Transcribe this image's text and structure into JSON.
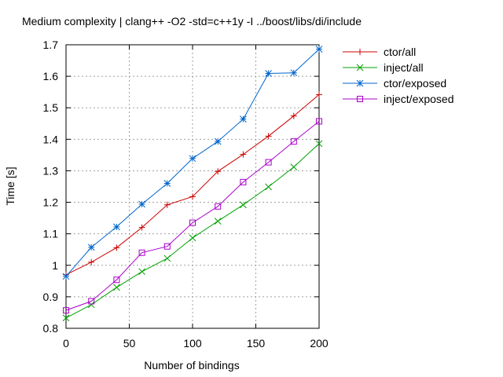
{
  "chart_data": {
    "type": "line",
    "title": "Medium complexity | clang++ -O2 -std=c++1y -I ../boost/libs/di/include",
    "xlabel": "Number of bindings",
    "ylabel": "Time [s]",
    "xlim": [
      0,
      200
    ],
    "ylim": [
      0.8,
      1.7
    ],
    "xticks": [
      0,
      50,
      100,
      150,
      200
    ],
    "yticks": [
      0.8,
      0.9,
      1,
      1.1,
      1.2,
      1.3,
      1.4,
      1.5,
      1.6,
      1.7
    ],
    "grid": true,
    "legend_position": "right",
    "x": [
      0,
      20,
      40,
      60,
      80,
      100,
      120,
      140,
      160,
      180,
      200
    ],
    "series": [
      {
        "name": "ctor/all",
        "color": "#cc0000",
        "marker": "plus",
        "values": [
          0.97,
          1.01,
          1.056,
          1.12,
          1.192,
          1.218,
          1.298,
          1.352,
          1.41,
          1.474,
          1.542
        ]
      },
      {
        "name": "inject/all",
        "color": "#00a000",
        "marker": "cross",
        "values": [
          0.833,
          0.875,
          0.93,
          0.98,
          1.022,
          1.087,
          1.14,
          1.192,
          1.249,
          1.312,
          1.386
        ]
      },
      {
        "name": "ctor/exposed",
        "color": "#0066cc",
        "marker": "star",
        "values": [
          0.965,
          1.057,
          1.122,
          1.194,
          1.26,
          1.339,
          1.393,
          1.464,
          1.609,
          1.611,
          1.686
        ]
      },
      {
        "name": "inject/exposed",
        "color": "#aa00cc",
        "marker": "square",
        "values": [
          0.857,
          0.886,
          0.954,
          1.04,
          1.06,
          1.135,
          1.187,
          1.264,
          1.327,
          1.393,
          1.457
        ]
      }
    ]
  }
}
